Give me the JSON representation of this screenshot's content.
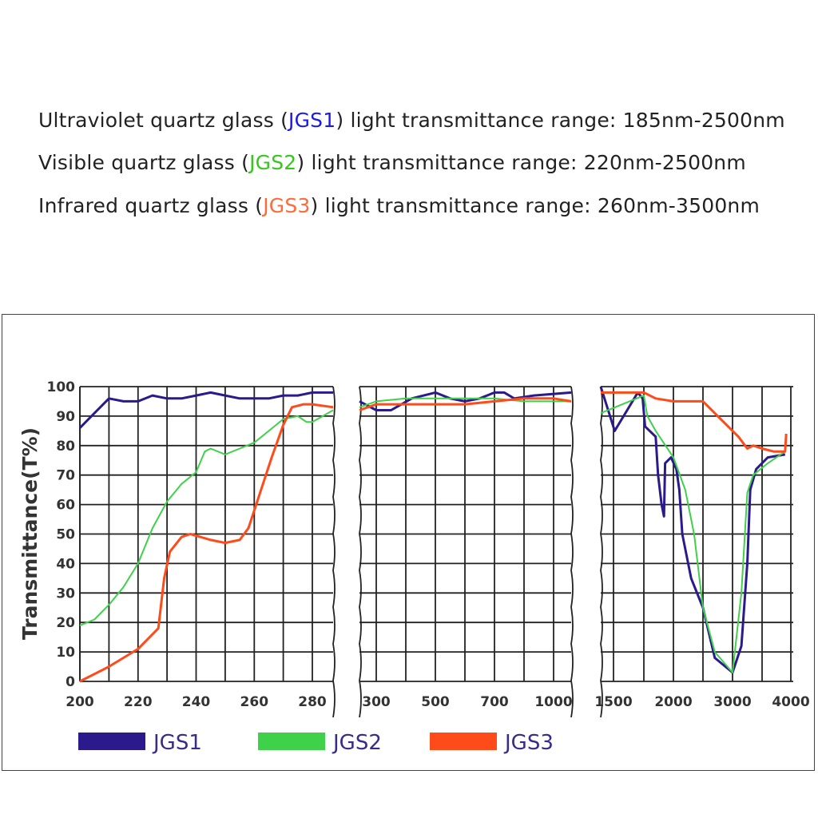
{
  "header": {
    "lines": [
      {
        "before": "Ultraviolet quartz glass (",
        "code": "JGS1",
        "after": ") light transmittance range: 185nm-2500nm",
        "color": "#1c1ce0"
      },
      {
        "before": "Visible quartz glass (",
        "code": "JGS2",
        "after": ") light transmittance range: 220nm-2500nm",
        "color": "#35c81a"
      },
      {
        "before": "Infrared quartz glass (",
        "code": "JGS3",
        "after": ") light transmittance range: 260nm-3500nm",
        "color": "#ff6a3a"
      }
    ]
  },
  "chart_data": {
    "type": "line",
    "ylabel": "Transmittance(T%)",
    "xlabel": "",
    "ylim": [
      0,
      100
    ],
    "yticks": [
      0,
      10,
      20,
      30,
      40,
      50,
      60,
      70,
      80,
      90,
      100
    ],
    "grid": true,
    "legend_placement": "bottom",
    "panels": [
      {
        "xrange": [
          200,
          285
        ],
        "gridlines": [
          200,
          210,
          220,
          230,
          240,
          250,
          260,
          270,
          280
        ],
        "ticklabels": [
          200,
          220,
          240,
          260,
          280
        ]
      },
      {
        "xrange": [
          250,
          1100
        ],
        "gridlines": [
          300,
          400,
          500,
          600,
          700,
          850,
          1000
        ],
        "ticklabels": [
          300,
          500,
          700,
          1000
        ]
      },
      {
        "xrange": [
          1400,
          4000
        ],
        "gridlines": [
          1500,
          1750,
          2000,
          2500,
          3000,
          3500,
          4000
        ],
        "ticklabels": [
          1500,
          2000,
          3000,
          4000
        ]
      }
    ],
    "series": [
      {
        "name": "JGS1",
        "color": "#2a1a8c",
        "panels": [
          [
            [
              200,
              86
            ],
            [
              205,
              91
            ],
            [
              210,
              96
            ],
            [
              215,
              95
            ],
            [
              220,
              95
            ],
            [
              225,
              97
            ],
            [
              230,
              96
            ],
            [
              235,
              96
            ],
            [
              240,
              97
            ],
            [
              245,
              98
            ],
            [
              250,
              97
            ],
            [
              255,
              96
            ],
            [
              260,
              96
            ],
            [
              265,
              96
            ],
            [
              270,
              97
            ],
            [
              275,
              97
            ],
            [
              280,
              98
            ],
            [
              285,
              98
            ]
          ],
          [
            [
              250,
              95
            ],
            [
              300,
              92
            ],
            [
              350,
              92
            ],
            [
              420,
              96
            ],
            [
              500,
              98
            ],
            [
              550,
              96
            ],
            [
              600,
              95
            ],
            [
              650,
              96
            ],
            [
              700,
              98
            ],
            [
              750,
              98
            ],
            [
              800,
              96
            ],
            [
              900,
              97
            ],
            [
              1100,
              98
            ]
          ],
          [
            [
              1400,
              100
            ],
            [
              1510,
              85
            ],
            [
              1700,
              98
            ],
            [
              1740,
              96
            ],
            [
              1760,
              86.5
            ],
            [
              1850,
              83
            ],
            [
              1870,
              70
            ],
            [
              1900,
              60
            ],
            [
              1920,
              56
            ],
            [
              1930,
              74
            ],
            [
              1980,
              76
            ],
            [
              2050,
              72
            ],
            [
              2100,
              65
            ],
            [
              2150,
              50
            ],
            [
              2300,
              35
            ],
            [
              2500,
              25
            ],
            [
              2700,
              8
            ],
            [
              3000,
              3
            ],
            [
              3150,
              12
            ],
            [
              3250,
              40
            ],
            [
              3300,
              65
            ],
            [
              3400,
              72
            ],
            [
              3600,
              76
            ],
            [
              3900,
              77
            ]
          ]
        ]
      },
      {
        "name": "JGS2",
        "color": "#3fd14a",
        "panels": [
          [
            [
              200,
              19
            ],
            [
              205,
              21
            ],
            [
              210,
              26
            ],
            [
              215,
              32
            ],
            [
              220,
              40
            ],
            [
              225,
              52
            ],
            [
              230,
              61
            ],
            [
              235,
              67
            ],
            [
              240,
              71
            ],
            [
              243,
              78
            ],
            [
              245,
              79
            ],
            [
              250,
              77
            ],
            [
              255,
              79
            ],
            [
              260,
              81
            ],
            [
              265,
              85
            ],
            [
              270,
              89
            ],
            [
              275,
              90
            ],
            [
              278,
              88
            ],
            [
              280,
              88
            ],
            [
              285,
              92
            ]
          ],
          [
            [
              250,
              93
            ],
            [
              300,
              95
            ],
            [
              400,
              96
            ],
            [
              500,
              96
            ],
            [
              600,
              96
            ],
            [
              700,
              96
            ],
            [
              850,
              95
            ],
            [
              1000,
              95
            ],
            [
              1100,
              95
            ]
          ],
          [
            [
              1400,
              91
            ],
            [
              1750,
              97
            ],
            [
              1780,
              90
            ],
            [
              1850,
              85
            ],
            [
              2000,
              76
            ],
            [
              2200,
              65
            ],
            [
              2350,
              50
            ],
            [
              2500,
              25
            ],
            [
              2700,
              10
            ],
            [
              3000,
              3
            ],
            [
              3150,
              30
            ],
            [
              3250,
              64
            ],
            [
              3350,
              70
            ],
            [
              3600,
              74
            ],
            [
              3900,
              78
            ]
          ]
        ]
      },
      {
        "name": "JGS3",
        "color": "#ff4a1a",
        "panels": [
          [
            [
              200,
              0
            ],
            [
              210,
              5
            ],
            [
              220,
              11
            ],
            [
              227,
              18
            ],
            [
              229,
              35
            ],
            [
              231,
              44
            ],
            [
              235,
              49
            ],
            [
              238,
              50
            ],
            [
              245,
              48
            ],
            [
              250,
              47
            ],
            [
              255,
              48
            ],
            [
              258,
              52
            ],
            [
              262,
              64
            ],
            [
              266,
              76
            ],
            [
              270,
              87
            ],
            [
              273,
              93
            ],
            [
              277,
              94
            ],
            [
              280,
              94
            ],
            [
              285,
              93
            ]
          ],
          [
            [
              250,
              92
            ],
            [
              300,
              94
            ],
            [
              400,
              94
            ],
            [
              500,
              94
            ],
            [
              600,
              94
            ],
            [
              700,
              95
            ],
            [
              850,
              96
            ],
            [
              1000,
              96
            ],
            [
              1100,
              95
            ]
          ],
          [
            [
              1400,
              98
            ],
            [
              1750,
              98
            ],
            [
              1850,
              96
            ],
            [
              2000,
              95
            ],
            [
              2300,
              95
            ],
            [
              2500,
              95
            ],
            [
              2750,
              90
            ],
            [
              3100,
              83
            ],
            [
              3250,
              79
            ],
            [
              3350,
              80
            ],
            [
              3500,
              79
            ],
            [
              3700,
              78
            ],
            [
              3900,
              78
            ],
            [
              3920,
              84
            ]
          ]
        ]
      }
    ]
  }
}
